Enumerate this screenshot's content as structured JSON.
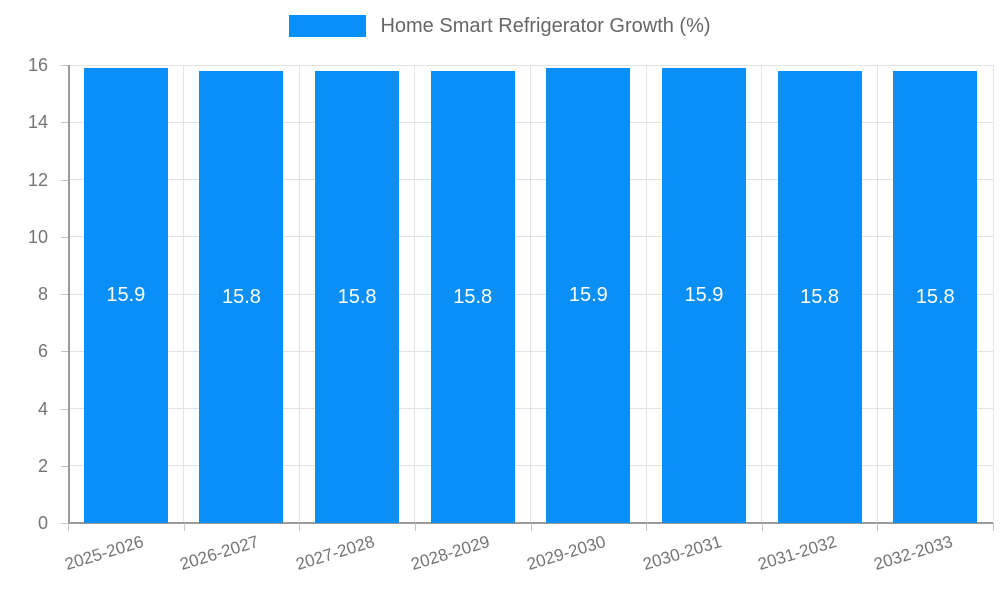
{
  "chart_data": {
    "type": "bar",
    "title": "Home Smart Refrigerator Growth (%)",
    "legend": "Home Smart Refrigerator Growth (%)",
    "legend_position": "top",
    "categories": [
      "2025-2026",
      "2026-2027",
      "2027-2028",
      "2028-2029",
      "2029-2030",
      "2030-2031",
      "2031-2032",
      "2032-2033"
    ],
    "values": [
      15.9,
      15.8,
      15.8,
      15.8,
      15.9,
      15.9,
      15.8,
      15.8
    ],
    "value_labels": [
      "15.9",
      "15.8",
      "15.8",
      "15.8",
      "15.9",
      "15.9",
      "15.8",
      "15.8"
    ],
    "xlabel": "",
    "ylabel": "",
    "ylim": [
      0,
      16
    ],
    "ytick_step": 2,
    "yticks": [
      "0",
      "2",
      "4",
      "6",
      "8",
      "10",
      "12",
      "14",
      "16"
    ],
    "grid": true,
    "colors": {
      "bar": "#0a8ff6",
      "grid": "#e3e3e3",
      "axis": "#9a9a9a",
      "tick": "#c4c4c4",
      "axis_text": "#757575",
      "legend_text": "#666666",
      "value_text": "#ffffff",
      "background": "#ffffff"
    }
  }
}
